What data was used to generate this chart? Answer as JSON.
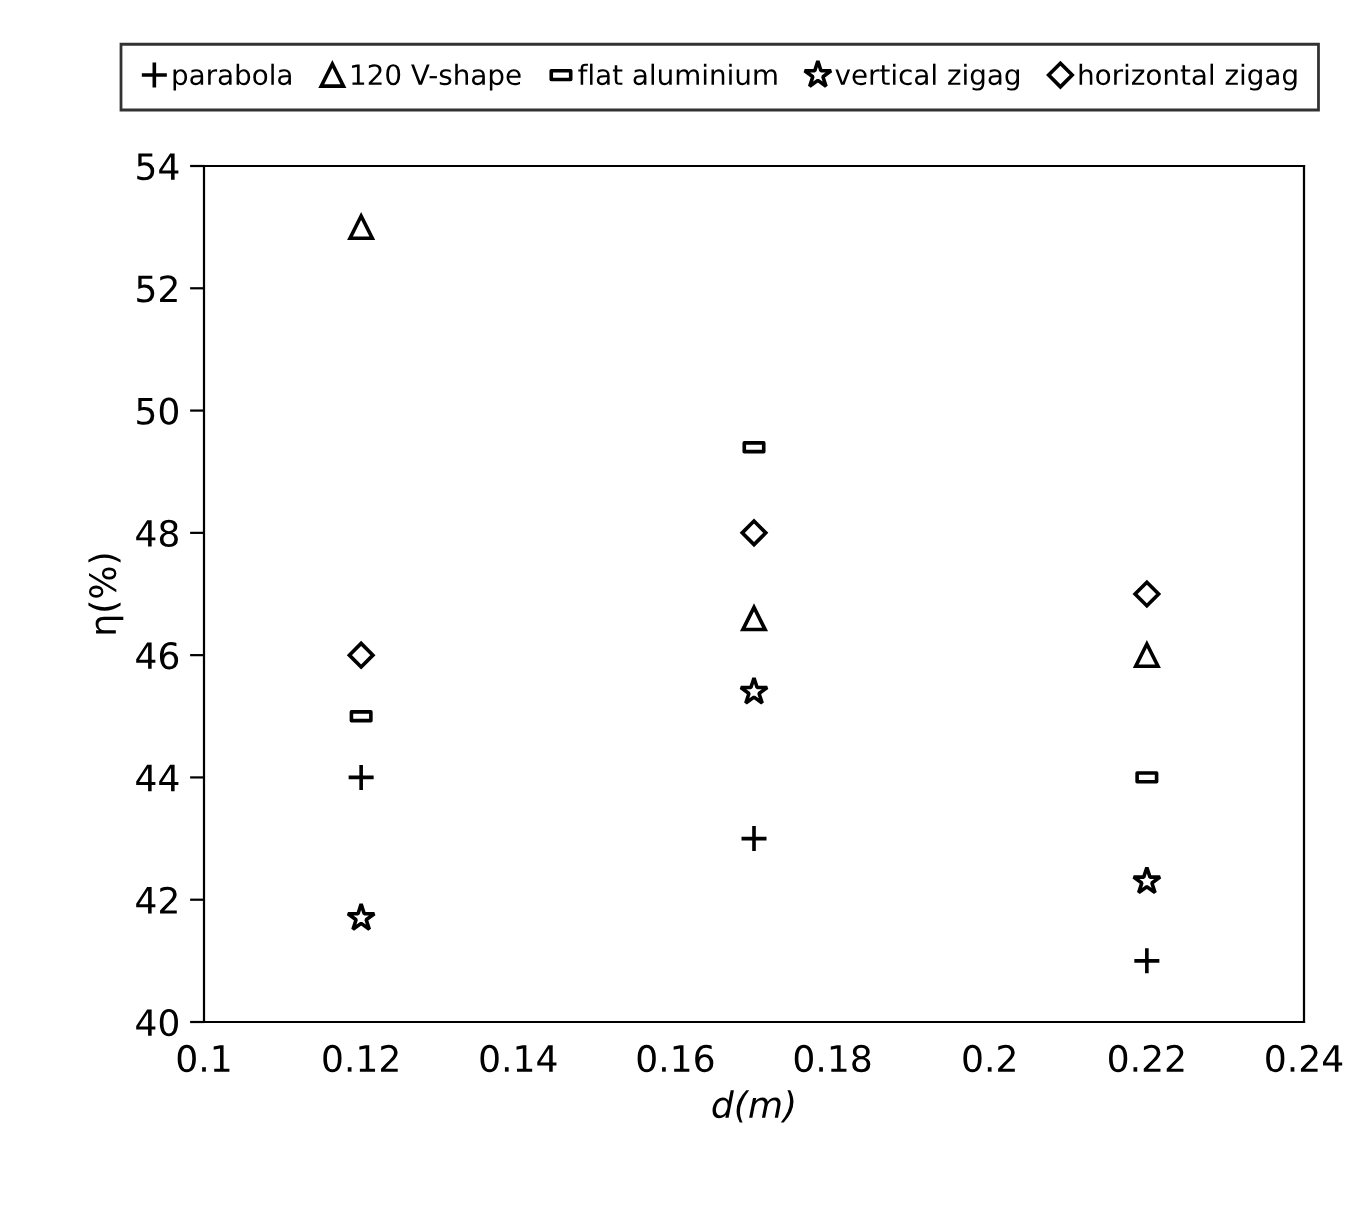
{
  "chart_data": {
    "type": "scatter",
    "xlabel": "d(m)",
    "ylabel": "η(%)",
    "x": [
      0.12,
      0.17,
      0.22
    ],
    "xlim": [
      0.1,
      0.24
    ],
    "xticks": [
      0.1,
      0.12,
      0.14,
      0.16,
      0.18,
      0.2,
      0.22,
      0.24
    ],
    "ylim": [
      40,
      54
    ],
    "yticks": [
      40,
      42,
      44,
      46,
      48,
      50,
      52,
      54
    ],
    "grid": false,
    "legend": "top",
    "series": [
      {
        "name": "parabola",
        "color": "#000000",
        "marker": "cross",
        "values": [
          44,
          43,
          41
        ]
      },
      {
        "name": "120 V-shape",
        "color": "#000000",
        "marker": "triangle",
        "values": [
          53,
          46.6,
          46
        ]
      },
      {
        "name": "flat aluminium",
        "color": "#000000",
        "marker": "square",
        "values": [
          45,
          49.4,
          44
        ]
      },
      {
        "name": "vertical zigag",
        "color": "#000000",
        "marker": "star",
        "values": [
          41.7,
          45.4,
          42.3
        ]
      },
      {
        "name": "horizontal zigag",
        "color": "#000000",
        "marker": "diamond",
        "values": [
          46,
          48,
          47
        ]
      }
    ]
  }
}
